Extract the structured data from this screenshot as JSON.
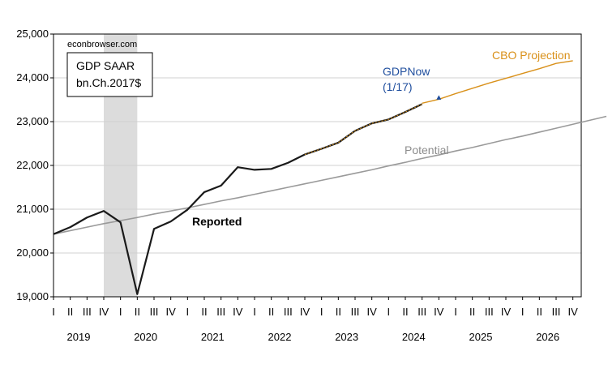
{
  "chart_data": {
    "type": "line",
    "watermark": "econbrowser.com",
    "legend_box": [
      "GDP SAAR",
      "bn.Ch.2017$"
    ],
    "yticks": [
      "25,000",
      "24,000",
      "23,000",
      "22,000",
      "21,000",
      "20,000",
      "19,000"
    ],
    "ylim": [
      19000,
      25000
    ],
    "quarter_labels": [
      "I",
      "II",
      "III",
      "IV"
    ],
    "years": [
      "2019",
      "2020",
      "2021",
      "2022",
      "2023",
      "2024",
      "2025",
      "2026"
    ],
    "recession_shading": {
      "start": "2019Q4",
      "end": "2020Q2",
      "color": "#dcdcdc"
    },
    "colors": {
      "reported": "#1a1a1a",
      "gdpnow": "#1f4e9e",
      "cbo": "#d9911b",
      "potential": "#9a9a9a",
      "grid": "#d0d0d0"
    },
    "series": [
      {
        "name": "Reported",
        "x_start": "2019Q1",
        "values": [
          20430,
          20590,
          20810,
          20960,
          20700,
          19060,
          20550,
          20720,
          20990,
          21390,
          21540,
          21960,
          21900,
          21920,
          22060,
          22250,
          22380,
          22520,
          22790,
          22960,
          23050,
          23220,
          23400
        ]
      },
      {
        "name": "GDPNow (1/17)",
        "x": "2024Q4",
        "values": [
          23540
        ]
      },
      {
        "name": "CBO Projection",
        "x_start": "2024Q3",
        "values": [
          23420,
          23510,
          23640,
          23760,
          23880,
          23990,
          24100,
          24210,
          24330,
          24390
        ]
      },
      {
        "name": "Potential",
        "x_start": "2019Q1",
        "values": [
          20430,
          20510,
          20590,
          20670,
          20740,
          20810,
          20890,
          20960,
          21030,
          21110,
          21190,
          21260,
          21340,
          21420,
          21500,
          21580,
          21660,
          21740,
          21820,
          21900,
          21990,
          22070,
          22160,
          22240,
          22330,
          22410,
          22500,
          22590,
          22670,
          22760,
          22850,
          22940,
          23030,
          23120
        ]
      }
    ],
    "annotations": {
      "reported": "Reported",
      "gdpnow": "GDPNow\n(1/17)",
      "cbo": "CBO Projection",
      "potential": "Potential"
    }
  }
}
